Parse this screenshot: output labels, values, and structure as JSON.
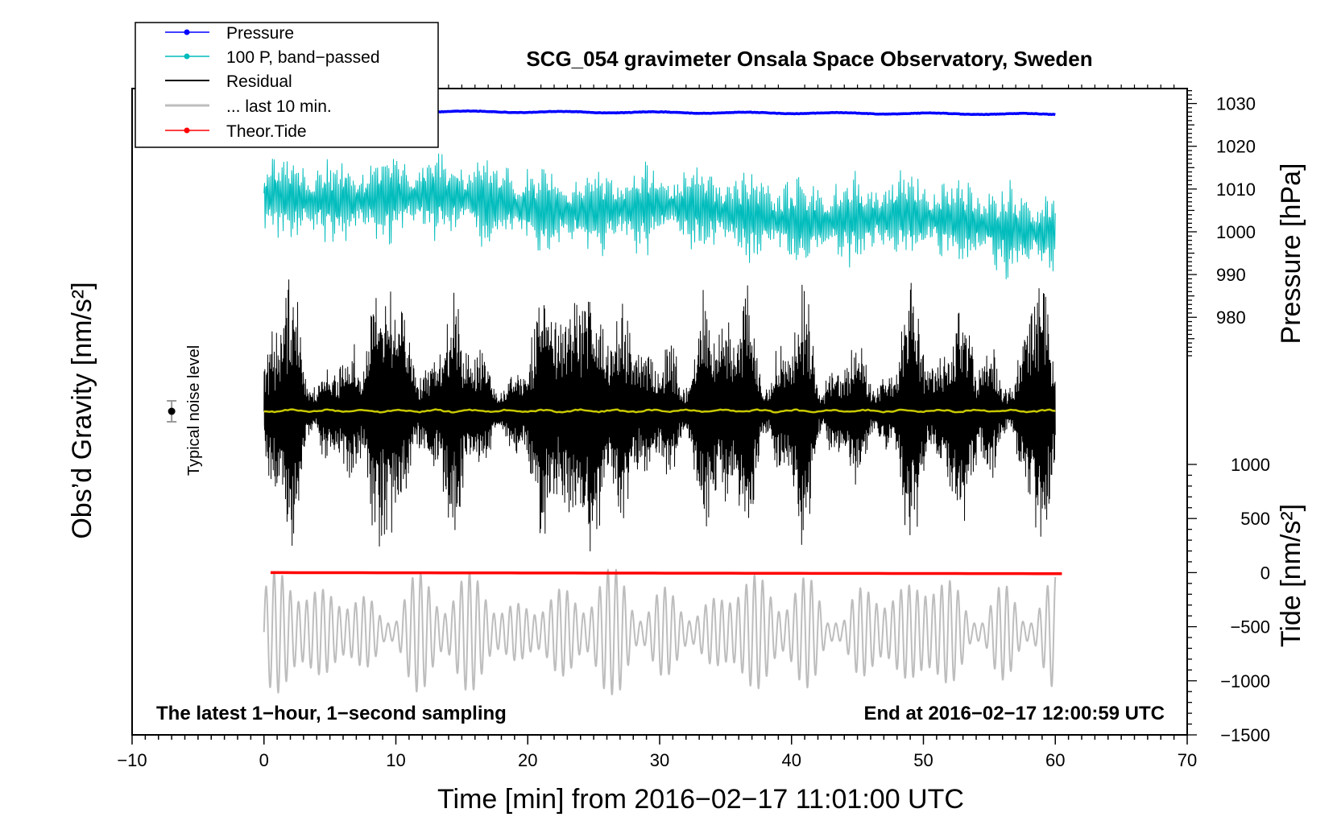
{
  "chart_data": {
    "type": "line",
    "title": "SCG_054 gravimeter Onsala Space Observatory, Sweden",
    "xlabel": "Time [min] from 2016−02−17 11:01:00 UTC",
    "ylabel_left": "Obs’d Gravity [nm/s²]",
    "ylabel_right_top": "Pressure [hPa]",
    "ylabel_right_bottom": "Tide [nm/s²]",
    "xlim": [
      -10,
      70
    ],
    "x_ticks": [
      -10,
      0,
      10,
      20,
      30,
      40,
      50,
      60,
      70
    ],
    "x_tick_labels": [
      "−10",
      "0",
      "10",
      "20",
      "30",
      "40",
      "50",
      "60",
      "70"
    ],
    "pressure_axis": {
      "ticks": [
        980,
        990,
        1000,
        1010,
        1020,
        1030
      ],
      "tick_labels": [
        "980",
        "990",
        "1000",
        "1010",
        "1020",
        "1030"
      ],
      "range": [
        969.5,
        1033.5
      ]
    },
    "tide_axis": {
      "ticks": [
        -1500,
        -1000,
        -500,
        0,
        500,
        1000
      ],
      "tick_labels": [
        "−1500",
        "−1000",
        "−500",
        "0",
        "500",
        "1000"
      ],
      "range": [
        -1500,
        1000
      ]
    },
    "legend": {
      "position": "top-left",
      "entries": [
        {
          "label": "Pressure",
          "color": "#0000ff",
          "marker": true
        },
        {
          "label": "100 P, band−passed",
          "color": "#00bcbc",
          "marker": true
        },
        {
          "label": "Residual",
          "color": "#000000",
          "marker": false
        },
        {
          "label": "... last 10 min.",
          "color": "#bdbdbd",
          "marker": false
        },
        {
          "label": "Theor.Tide",
          "color": "#ff0000",
          "marker": true
        }
      ]
    },
    "series": [
      {
        "name": "Pressure",
        "color": "#0000ff",
        "x_range": [
          0,
          60
        ],
        "start_hpa": 1028.3,
        "end_hpa": 1027.5
      },
      {
        "name": "100 P, band−passed",
        "color": "#00bcbc",
        "x_range": [
          0,
          60
        ],
        "center_hpa": 1005,
        "amplitude_hpa": 8
      },
      {
        "name": "Residual",
        "color": "#000000",
        "x_range": [
          0,
          60
        ],
        "envelope_peaks_min": [
          2,
          8.5,
          9.5,
          14,
          21.5,
          23.5,
          25,
          27.5,
          33.5,
          36.5,
          41,
          49,
          52.5,
          58.5
        ]
      },
      {
        "name": "... last 10 min.",
        "color": "#bdbdbd",
        "x_range": [
          0,
          60
        ],
        "center_nm_s2": -550,
        "amplitude_nm_s2": 550
      },
      {
        "name": "Theor.Tide",
        "color": "#ff0000",
        "x_range": [
          0.5,
          60.5
        ],
        "start_nm_s2": 0,
        "end_nm_s2": -10
      },
      {
        "name": "Smoothed",
        "color": "#c8c800",
        "x_range": [
          0,
          60
        ]
      }
    ],
    "noise_marker": {
      "label": "Typical noise level",
      "x_min": -7
    }
  },
  "footer": {
    "left": "The latest 1−hour, 1−second sampling",
    "right": "End at 2016−02−17 12:00:59 UTC"
  }
}
